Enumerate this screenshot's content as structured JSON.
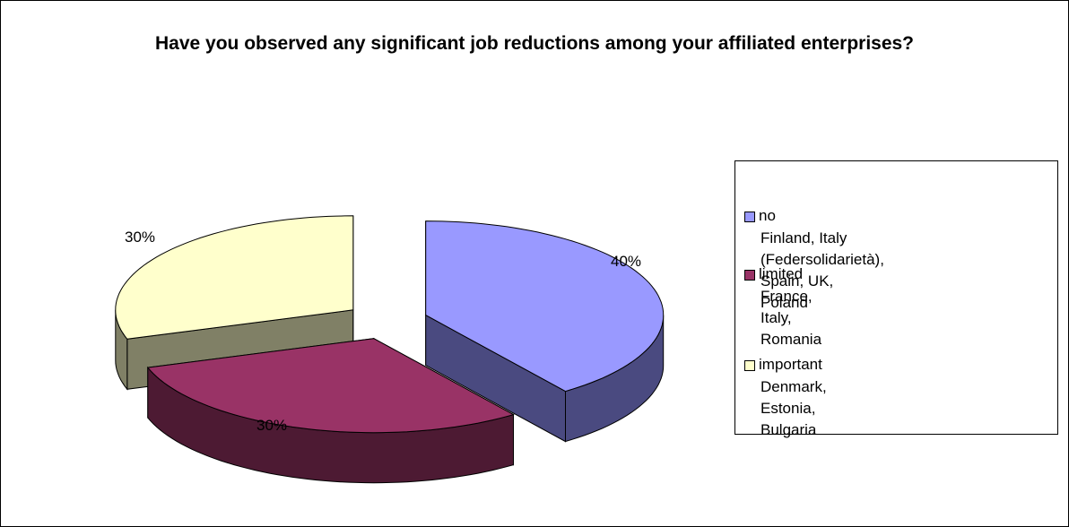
{
  "chart_data": {
    "type": "pie",
    "title": "Have you observed any significant job reductions among your affiliated enterprises?",
    "style": "3d-exploded",
    "slices": [
      {
        "label": "no",
        "countries": "Finland, Italy (Federsolidarietà),\nSpain, UK, Poland",
        "value": 40,
        "value_label": "40%",
        "color": "#9999ff",
        "side_color": "#4a4a80"
      },
      {
        "label": "limited",
        "countries": "France, Italy, Romania",
        "value": 30,
        "value_label": "30%",
        "color": "#993366",
        "side_color": "#4d1a33"
      },
      {
        "label": "important",
        "countries": "Denmark, Estonia, Bulgaria",
        "value": 30,
        "value_label": "30%",
        "color": "#ffffcc",
        "side_color": "#808066"
      }
    ],
    "legend_position": "right"
  }
}
